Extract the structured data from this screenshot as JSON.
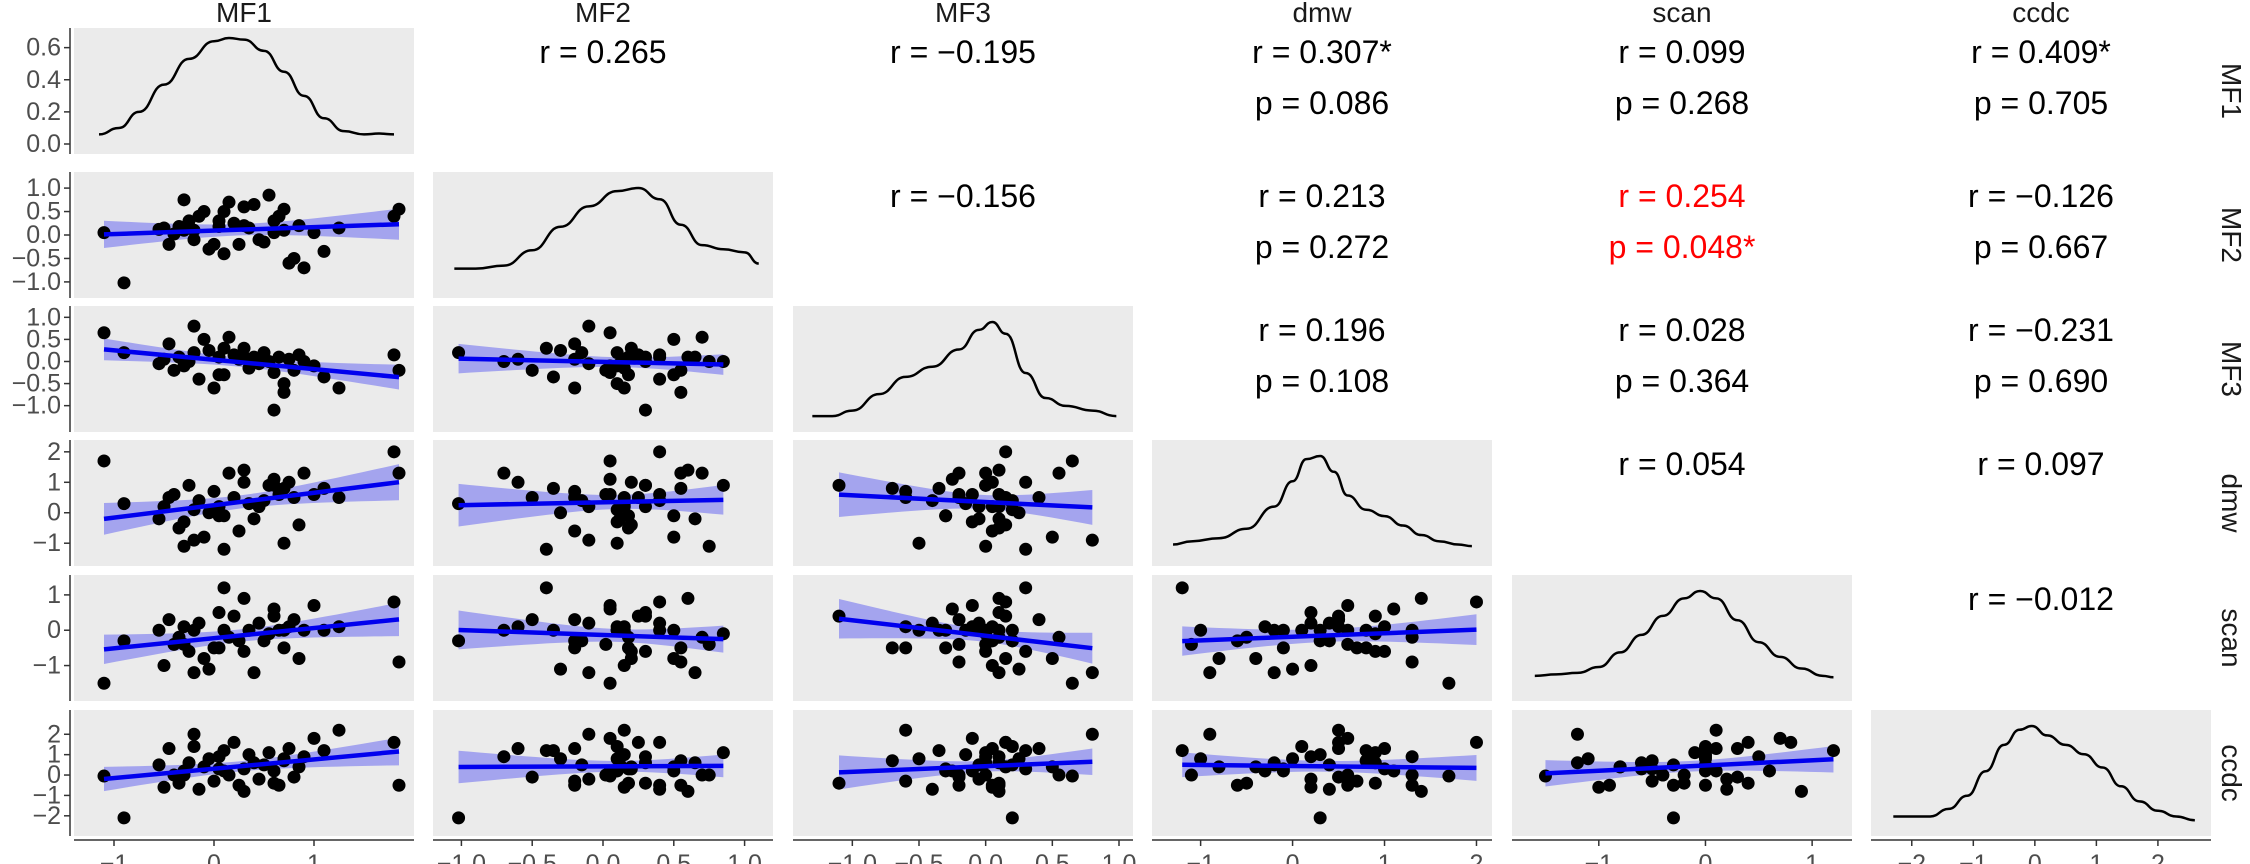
{
  "chart_data": {
    "type": "scatter",
    "title": "",
    "description_type": "pairs-plot",
    "variables": [
      "MF1",
      "MF2",
      "MF3",
      "dmw",
      "scan",
      "ccdc"
    ],
    "axis_ranges": {
      "MF1": [
        -1.3,
        1.9
      ],
      "MF2": [
        -1.13,
        1.13
      ],
      "MF3": [
        -1.37,
        1.03
      ],
      "dmw": [
        -1.42,
        2.06
      ],
      "scan": [
        -1.72,
        1.28
      ],
      "ccdc": [
        -2.5,
        2.7
      ]
    },
    "ticks": {
      "MF1": {
        "values": [
          -1,
          0,
          1
        ],
        "labels": [
          "−1",
          "0",
          "1"
        ]
      },
      "MF2": {
        "values": [
          -1.0,
          -0.5,
          0.0,
          0.5,
          1.0
        ],
        "labels": [
          "−1.0",
          "−0.5",
          "0.0",
          "0.5",
          "1.0"
        ]
      },
      "MF3": {
        "values": [
          -1.0,
          -0.5,
          0.0,
          0.5,
          1.0
        ],
        "labels": [
          "−1.0",
          "−0.5",
          "0.0",
          "0.5",
          "1.0"
        ]
      },
      "dmw": {
        "values": [
          -1,
          0,
          1,
          2
        ],
        "labels": [
          "−1",
          "0",
          "1",
          "2"
        ]
      },
      "scan": {
        "values": [
          -1,
          0,
          1
        ],
        "labels": [
          "−1",
          "0",
          "1"
        ]
      },
      "ccdc": {
        "values": [
          -2,
          -1,
          0,
          1,
          2
        ],
        "labels": [
          "−2",
          "−1",
          "0",
          "1",
          "2"
        ]
      }
    },
    "density_axis": {
      "range": [
        0,
        0.66
      ],
      "ticks": [
        0.0,
        0.2,
        0.4,
        0.6
      ],
      "labels": [
        "0.0",
        "0.2",
        "0.4",
        "0.6"
      ]
    },
    "upper_panels": [
      {
        "row": 0,
        "col": 1,
        "lines": [
          "r = 0.265"
        ],
        "highlight": false
      },
      {
        "row": 0,
        "col": 2,
        "lines": [
          "r = −0.195"
        ],
        "highlight": false
      },
      {
        "row": 0,
        "col": 3,
        "lines": [
          "r = 0.307*",
          "p = 0.086"
        ],
        "highlight": false
      },
      {
        "row": 0,
        "col": 4,
        "lines": [
          "r = 0.099",
          "p = 0.268"
        ],
        "highlight": false
      },
      {
        "row": 0,
        "col": 5,
        "lines": [
          "r = 0.409*",
          "p = 0.705"
        ],
        "highlight": false
      },
      {
        "row": 1,
        "col": 2,
        "lines": [
          "r = −0.156"
        ],
        "highlight": false
      },
      {
        "row": 1,
        "col": 3,
        "lines": [
          "r = 0.213",
          "p = 0.272"
        ],
        "highlight": false
      },
      {
        "row": 1,
        "col": 4,
        "lines": [
          "r = 0.254",
          "p = 0.048*"
        ],
        "highlight": true
      },
      {
        "row": 1,
        "col": 5,
        "lines": [
          "r = −0.126",
          "p = 0.667"
        ],
        "highlight": false
      },
      {
        "row": 2,
        "col": 3,
        "lines": [
          "r = 0.196",
          "p = 0.108"
        ],
        "highlight": false
      },
      {
        "row": 2,
        "col": 4,
        "lines": [
          "r = 0.028",
          "p = 0.364"
        ],
        "highlight": false
      },
      {
        "row": 2,
        "col": 5,
        "lines": [
          "r = −0.231",
          "p = 0.690"
        ],
        "highlight": false
      },
      {
        "row": 3,
        "col": 4,
        "lines": [
          "r = 0.054"
        ],
        "highlight": false
      },
      {
        "row": 3,
        "col": 5,
        "lines": [
          "r = 0.097"
        ],
        "highlight": false
      },
      {
        "row": 4,
        "col": 5,
        "lines": [
          "r = −0.012"
        ],
        "highlight": false
      }
    ],
    "densities": [
      {
        "variable": "MF1",
        "x": [
          -1.15,
          -0.95,
          -0.75,
          -0.5,
          -0.25,
          0.0,
          0.15,
          0.3,
          0.5,
          0.7,
          0.9,
          1.1,
          1.3,
          1.5,
          1.65,
          1.8
        ],
        "y": [
          0.06,
          0.1,
          0.2,
          0.37,
          0.53,
          0.64,
          0.66,
          0.65,
          0.58,
          0.45,
          0.3,
          0.16,
          0.08,
          0.06,
          0.065,
          0.06
        ]
      },
      {
        "variable": "MF2",
        "x": [
          -1.05,
          -0.9,
          -0.7,
          -0.5,
          -0.3,
          -0.1,
          0.1,
          0.25,
          0.4,
          0.55,
          0.7,
          0.85,
          1.0,
          1.1
        ],
        "y": [
          0.17,
          0.17,
          0.2,
          0.35,
          0.58,
          0.78,
          0.93,
          0.96,
          0.85,
          0.6,
          0.4,
          0.36,
          0.33,
          0.22
        ]
      },
      {
        "variable": "MF3",
        "x": [
          -1.3,
          -1.15,
          -1.0,
          -0.8,
          -0.6,
          -0.4,
          -0.2,
          -0.05,
          0.05,
          0.15,
          0.3,
          0.45,
          0.6,
          0.8,
          0.98
        ],
        "y": [
          0.05,
          0.05,
          0.12,
          0.33,
          0.55,
          0.68,
          0.9,
          1.15,
          1.25,
          1.1,
          0.6,
          0.28,
          0.18,
          0.12,
          0.05
        ]
      },
      {
        "variable": "dmw",
        "x": [
          -1.3,
          -1.1,
          -0.8,
          -0.5,
          -0.2,
          0.0,
          0.15,
          0.3,
          0.45,
          0.6,
          0.8,
          1.0,
          1.2,
          1.4,
          1.6,
          1.8,
          1.95
        ],
        "y": [
          0.06,
          0.08,
          0.1,
          0.16,
          0.3,
          0.46,
          0.6,
          0.62,
          0.52,
          0.37,
          0.28,
          0.24,
          0.18,
          0.12,
          0.08,
          0.06,
          0.05
        ]
      },
      {
        "variable": "scan",
        "x": [
          -1.6,
          -1.4,
          -1.2,
          -1.0,
          -0.8,
          -0.6,
          -0.4,
          -0.2,
          -0.05,
          0.1,
          0.3,
          0.5,
          0.7,
          0.9,
          1.1,
          1.2
        ],
        "y": [
          0.09,
          0.1,
          0.11,
          0.15,
          0.25,
          0.37,
          0.5,
          0.62,
          0.67,
          0.62,
          0.47,
          0.32,
          0.22,
          0.14,
          0.09,
          0.08
        ]
      },
      {
        "variable": "ccdc",
        "x": [
          -2.3,
          -2.0,
          -1.7,
          -1.4,
          -1.1,
          -0.8,
          -0.5,
          -0.25,
          -0.05,
          0.2,
          0.5,
          0.8,
          1.1,
          1.4,
          1.7,
          2.0,
          2.3,
          2.6
        ],
        "y": [
          0.04,
          0.04,
          0.04,
          0.08,
          0.15,
          0.28,
          0.42,
          0.5,
          0.52,
          0.47,
          0.42,
          0.37,
          0.3,
          0.2,
          0.12,
          0.07,
          0.04,
          0.02
        ]
      }
    ],
    "scatter_points": {
      "MF1": [
        -1.1,
        0.05,
        -0.9,
        -0.55,
        -0.5,
        -0.45,
        -0.4,
        -0.35,
        -0.3,
        -0.25,
        -0.2,
        -0.15,
        -0.1,
        -0.05,
        0.0,
        0.05,
        0.1,
        0.15,
        0.2,
        0.25,
        0.3,
        0.35,
        0.4,
        0.45,
        0.5,
        0.55,
        0.6,
        0.65,
        0.7,
        0.75,
        0.8,
        0.85,
        0.9,
        1.0,
        1.1,
        1.25,
        1.8,
        1.85,
        -0.3,
        0.1,
        -0.2,
        0.3,
        0.6,
        0.7
      ],
      "MF2": [
        0.05,
        0.18,
        -1.02,
        0.12,
        0.15,
        -0.2,
        0.02,
        0.18,
        0.1,
        0.3,
        0.1,
        0.4,
        0.5,
        -0.3,
        -0.2,
        0.3,
        0.5,
        0.7,
        0.25,
        -0.2,
        0.2,
        0.15,
        0.65,
        -0.1,
        -0.15,
        0.85,
        0.05,
        0.4,
        0.55,
        -0.6,
        -0.5,
        0.2,
        -0.7,
        0.05,
        -0.35,
        0.15,
        0.4,
        0.55,
        0.75,
        -0.4,
        -0.1,
        0.6,
        0.3,
        0.1
      ],
      "MF3": [
        0.65,
        -0.3,
        0.2,
        -0.05,
        0.05,
        0.4,
        -0.2,
        0.1,
        -0.1,
        0.0,
        0.2,
        -0.4,
        0.5,
        0.25,
        -0.6,
        0.1,
        -0.3,
        0.55,
        0.15,
        0.05,
        0.3,
        -0.15,
        0.1,
        -0.05,
        0.2,
        0.0,
        -0.25,
        0.1,
        -0.7,
        0.05,
        -0.2,
        0.15,
        0.0,
        -0.1,
        -0.35,
        -0.6,
        0.15,
        -0.2,
        0.0,
        0.3,
        0.8,
        0.1,
        -1.1,
        -0.5
      ],
      "dmw": [
        1.7,
        -0.1,
        0.3,
        -0.2,
        0.2,
        0.5,
        0.6,
        -0.5,
        -0.3,
        0.9,
        0.1,
        0.4,
        -0.8,
        0.0,
        0.7,
        0.2,
        -0.1,
        1.3,
        0.5,
        -0.6,
        1.0,
        0.3,
        -0.2,
        0.2,
        0.4,
        0.9,
        1.1,
        0.6,
        0.8,
        1.0,
        0.5,
        -0.4,
        1.3,
        0.6,
        0.8,
        0.5,
        2.0,
        1.3,
        -1.1,
        -1.2,
        -0.9,
        1.4,
        0.9,
        -1.0
      ],
      "scan": [
        -1.5,
        -0.5,
        -0.3,
        0.0,
        -1.0,
        0.3,
        -0.4,
        -0.2,
        0.1,
        -0.6,
        0.0,
        0.2,
        -0.8,
        -1.1,
        -0.5,
        0.5,
        0.0,
        -0.2,
        0.4,
        -0.3,
        -0.6,
        0.0,
        -1.2,
        0.2,
        -0.3,
        -0.1,
        0.6,
        0.0,
        -0.5,
        0.1,
        0.3,
        -0.8,
        0.0,
        0.7,
        0.0,
        0.1,
        0.8,
        -0.9,
        -0.4,
        1.2,
        -1.2,
        0.9,
        0.4,
        0.0
      ],
      "ccdc": [
        -0.05,
        0.3,
        -2.1,
        0.5,
        -0.6,
        1.3,
        0.0,
        -0.4,
        0.2,
        0.6,
        1.4,
        -0.7,
        0.4,
        0.8,
        -0.3,
        0.9,
        0.2,
        0.0,
        1.6,
        -0.5,
        0.3,
        1.0,
        0.6,
        -0.2,
        0.5,
        1.1,
        0.2,
        -0.5,
        0.7,
        1.3,
        -0.1,
        0.4,
        0.9,
        1.8,
        1.2,
        2.2,
        1.6,
        -0.5,
        0.0,
        1.2,
        2.0,
        -0.8,
        -0.4,
        0.8
      ]
    },
    "point_color": "#000000",
    "fit_line_color": "#0000ee",
    "ci_band_color": "#6a6af0",
    "panel_background": "#ebebeb",
    "highlight_color": "#ff0000",
    "grid": false
  }
}
